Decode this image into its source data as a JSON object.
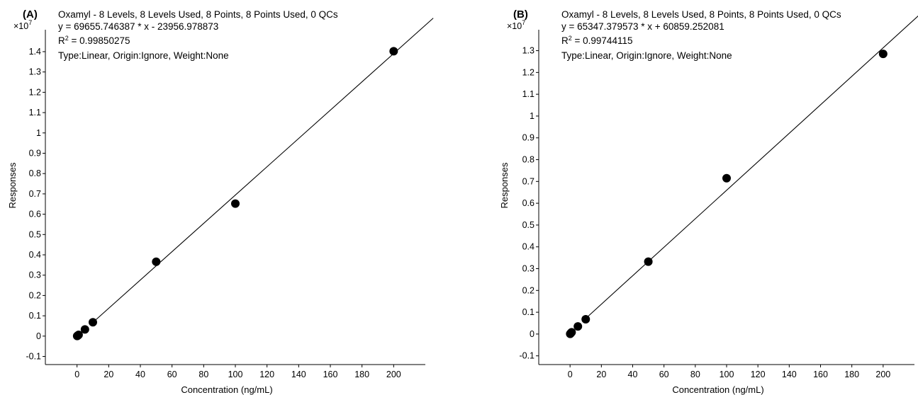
{
  "chart_data": [
    {
      "type": "scatter",
      "panel_label": "(A)",
      "title": "Oxamyl - 8 Levels, 8 Levels Used, 8 Points, 8 Points Used, 0 QCs",
      "equation": "y = 69655.746387 * x  - 23956.978873",
      "r2_prefix": "R",
      "r2_sup": "2",
      "r2_value": " = 0.99850275",
      "fit_info": "Type:Linear, Origin:Ignore, Weight:None",
      "multiplier_base": "×10",
      "multiplier_exp": "7",
      "xlabel": "Concentration (ng/mL)",
      "ylabel": "Responses",
      "xlim": [
        -20,
        220
      ],
      "ylim": [
        -0.14,
        1.48
      ],
      "xticks": [
        0,
        20,
        40,
        60,
        80,
        100,
        120,
        140,
        160,
        180,
        200
      ],
      "yticks": [
        -0.1,
        0,
        0.1,
        0.2,
        0.3,
        0.4,
        0.5,
        0.6,
        0.7,
        0.8,
        0.9,
        1,
        1.1,
        1.2,
        1.3,
        1.4
      ],
      "ytick_labels": [
        "-0.1",
        "0",
        "0.1",
        "0.2",
        "0.3",
        "0.4",
        "0.5",
        "0.6",
        "0.7",
        "0.8",
        "0.9",
        "1",
        "1.1",
        "1.2",
        "1.3",
        "1.4"
      ],
      "series": [
        {
          "x": [
            0.1,
            0.5,
            1,
            5,
            10,
            50,
            100,
            200
          ],
          "y": [
            0.0005,
            0.003,
            0.0065,
            0.033,
            0.068,
            0.366,
            0.652,
            1.402
          ]
        }
      ],
      "fit": {
        "slope": 69655.746387,
        "intercept": -23956.978873,
        "scale": 10000000,
        "x_range": [
          10,
          225
        ]
      }
    },
    {
      "type": "scatter",
      "panel_label": "(B)",
      "title": "Oxamyl - 8 Levels, 8 Levels Used, 8 Points, 8 Points Used, 0 QCs",
      "equation": "y = 65347.379573 * x  + 60859.252081",
      "r2_prefix": "R",
      "r2_sup": "2",
      "r2_value": " = 0.99744115",
      "fit_info": "Type:Linear, Origin:Ignore, Weight:None",
      "multiplier_base": "×10",
      "multiplier_exp": "7",
      "xlabel": "Concentration (ng/mL)",
      "ylabel": "Responses",
      "xlim": [
        -20,
        220
      ],
      "ylim": [
        -0.14,
        1.37
      ],
      "xticks": [
        0,
        20,
        40,
        60,
        80,
        100,
        120,
        140,
        160,
        180,
        200
      ],
      "yticks": [
        -0.1,
        0,
        0.1,
        0.2,
        0.3,
        0.4,
        0.5,
        0.6,
        0.7,
        0.8,
        0.9,
        1,
        1.1,
        1.2,
        1.3
      ],
      "ytick_labels": [
        "-0.1",
        "0",
        "0.1",
        "0.2",
        "0.3",
        "0.4",
        "0.5",
        "0.6",
        "0.7",
        "0.8",
        "0.9",
        "1",
        "1.1",
        "1.2",
        "1.3"
      ],
      "series": [
        {
          "x": [
            0.1,
            0.5,
            1,
            5,
            10,
            50,
            100,
            200
          ],
          "y": [
            0.0008,
            0.004,
            0.008,
            0.035,
            0.068,
            0.332,
            0.715,
            1.285
          ]
        }
      ],
      "fit": {
        "slope": 65347.379573,
        "intercept": 60859.252081,
        "scale": 10000000,
        "x_range": [
          10,
          225
        ]
      }
    }
  ]
}
